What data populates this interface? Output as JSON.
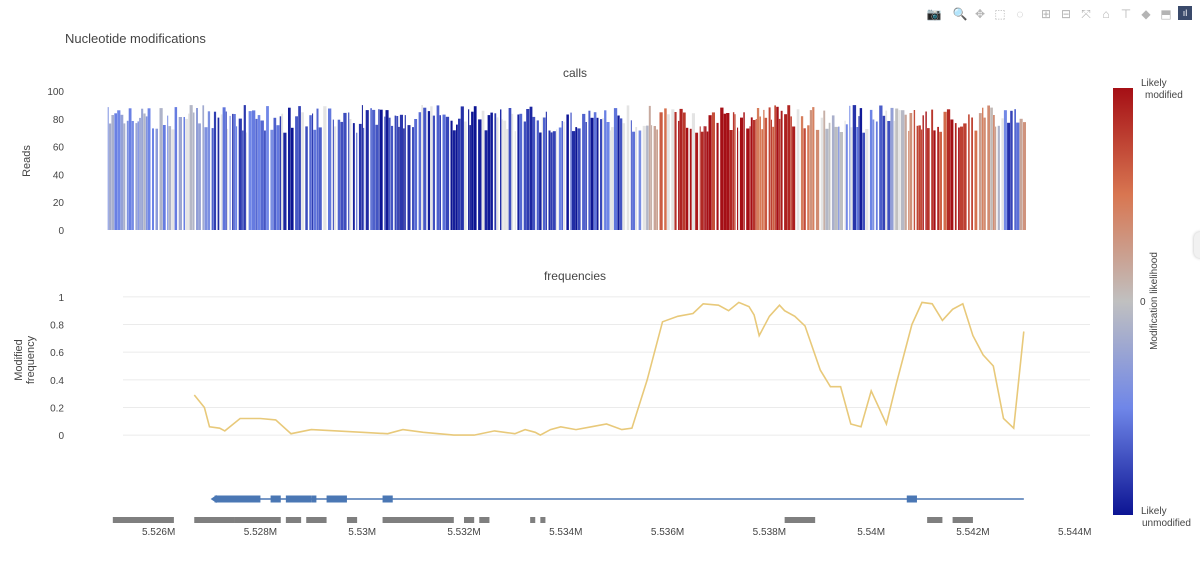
{
  "modebar": {
    "items": [
      {
        "name": "camera-icon",
        "glyph": "📷"
      },
      {
        "name": "zoom-icon",
        "glyph": "🔍"
      },
      {
        "name": "pan-icon",
        "glyph": "✥"
      },
      {
        "name": "box-select-icon",
        "glyph": "⬚"
      },
      {
        "name": "lasso-select-icon",
        "glyph": "◌"
      },
      {
        "name": "zoom-in-icon",
        "glyph": "⊞"
      },
      {
        "name": "zoom-out-icon",
        "glyph": "⊟"
      },
      {
        "name": "autoscale-icon",
        "glyph": "⤧"
      },
      {
        "name": "home-icon",
        "glyph": "⌂"
      },
      {
        "name": "spike-lines-icon",
        "glyph": "⊤"
      },
      {
        "name": "hover-closest-icon",
        "glyph": "◆"
      },
      {
        "name": "hover-compare-icon",
        "glyph": "⬒"
      },
      {
        "name": "plotly-logo-icon",
        "glyph": "ıl"
      }
    ]
  },
  "chart_data": {
    "title": "Nucleotide modifications",
    "colors": {
      "line": "#e8c97a",
      "gene": "#4a77b4",
      "feature": "#7f7f7f",
      "grid": "#ebebeb",
      "text": "#444444"
    },
    "panels": [
      {
        "name": "calls",
        "type": "heatmap",
        "title": "calls",
        "ylabel": "Reads",
        "ylim": [
          0,
          100
        ],
        "yticks": [
          0,
          20,
          40,
          60,
          80,
          100
        ],
        "y_tick_labels": [
          "0",
          "20",
          "40",
          "60",
          "80",
          "100"
        ]
      },
      {
        "name": "frequencies",
        "type": "line",
        "title": "frequencies",
        "ylabel": "Modified frequency",
        "ylabel_lines": [
          "Modified",
          "frequency"
        ],
        "ylim": [
          -0.05,
          1.05
        ],
        "yticks": [
          0,
          0.2,
          0.4,
          0.6,
          0.8,
          1
        ],
        "y_tick_labels": [
          "0",
          "0.2",
          "0.4",
          "0.6",
          "0.8",
          "1"
        ],
        "x": [
          5.5267,
          5.5269,
          5.527,
          5.5272,
          5.5273,
          5.5276,
          5.528,
          5.5283,
          5.5286,
          5.529,
          5.5295,
          5.53,
          5.5305,
          5.5308,
          5.5312,
          5.5318,
          5.5322,
          5.5326,
          5.533,
          5.5332,
          5.5334,
          5.5335,
          5.5337,
          5.5339,
          5.5342,
          5.5345,
          5.5348,
          5.5351,
          5.5353,
          5.5356,
          5.5359,
          5.5362,
          5.5365,
          5.5367,
          5.537,
          5.5372,
          5.5374,
          5.5376,
          5.5377,
          5.5378,
          5.538,
          5.5382,
          5.5383,
          5.5385,
          5.5387,
          5.539,
          5.5392,
          5.5394,
          5.5396,
          5.5398,
          5.54,
          5.5403,
          5.5405,
          5.5408,
          5.541,
          5.5412,
          5.5414,
          5.5416,
          5.5418,
          5.542,
          5.5422,
          5.5424,
          5.5426,
          5.5428,
          5.543
        ],
        "y": [
          0.29,
          0.2,
          0.06,
          0.05,
          0.03,
          0.12,
          0.12,
          0.11,
          0.01,
          0.04,
          0.03,
          0.02,
          0.01,
          0.04,
          0.02,
          0.0,
          0.0,
          0.03,
          0.01,
          0.04,
          0.02,
          0.0,
          0.04,
          0.06,
          0.04,
          0.06,
          0.08,
          0.04,
          0.05,
          0.4,
          0.82,
          0.86,
          0.88,
          0.95,
          0.94,
          0.9,
          0.96,
          0.93,
          0.87,
          0.72,
          0.86,
          0.94,
          0.9,
          0.86,
          0.79,
          0.47,
          0.35,
          0.35,
          0.08,
          0.06,
          0.32,
          0.08,
          0.38,
          0.8,
          0.96,
          0.95,
          0.83,
          0.91,
          0.95,
          0.72,
          0.58,
          0.5,
          0.12,
          0.05,
          0.75
        ]
      }
    ],
    "xaxis": {
      "range": [
        5.5253,
        5.5443
      ],
      "ticks": [
        5.526,
        5.528,
        5.53,
        5.532,
        5.534,
        5.536,
        5.538,
        5.54,
        5.542,
        5.544
      ],
      "tick_labels": [
        "5.526M",
        "5.528M",
        "5.53M",
        "5.532M",
        "5.534M",
        "5.536M",
        "5.538M",
        "5.54M",
        "5.542M",
        "5.544M"
      ]
    },
    "gene": {
      "line": [
        5.5271,
        5.543
      ],
      "exons": [
        [
          5.5271,
          5.528
        ],
        [
          5.5282,
          5.5284
        ],
        [
          5.5285,
          5.529
        ],
        [
          5.529,
          5.5291
        ],
        [
          5.5293,
          5.5297
        ],
        [
          5.5304,
          5.5306
        ],
        [
          5.5407,
          5.5409
        ]
      ]
    },
    "features": [
      [
        5.5251,
        5.5263
      ],
      [
        5.5267,
        5.5275
      ],
      [
        5.5275,
        5.5284
      ],
      [
        5.5285,
        5.5288
      ],
      [
        5.5289,
        5.5293
      ],
      [
        5.5297,
        5.5299
      ],
      [
        5.5304,
        5.5318
      ],
      [
        5.532,
        5.5322
      ],
      [
        5.5323,
        5.5325
      ],
      [
        5.5333,
        5.5334
      ],
      [
        5.5335,
        5.5336
      ],
      [
        5.5383,
        5.5389
      ],
      [
        5.5411,
        5.5414
      ],
      [
        5.5416,
        5.542
      ]
    ],
    "colorbar": {
      "title": "Modification likelihood",
      "top_label": [
        "Likely",
        "modified"
      ],
      "mid_label": "0",
      "bottom_label": [
        "Likely",
        "unmodified"
      ],
      "colors": [
        "#a50f15",
        "#d87651",
        "#c0c0c0",
        "#6f86e8",
        "#0c1493"
      ]
    }
  }
}
